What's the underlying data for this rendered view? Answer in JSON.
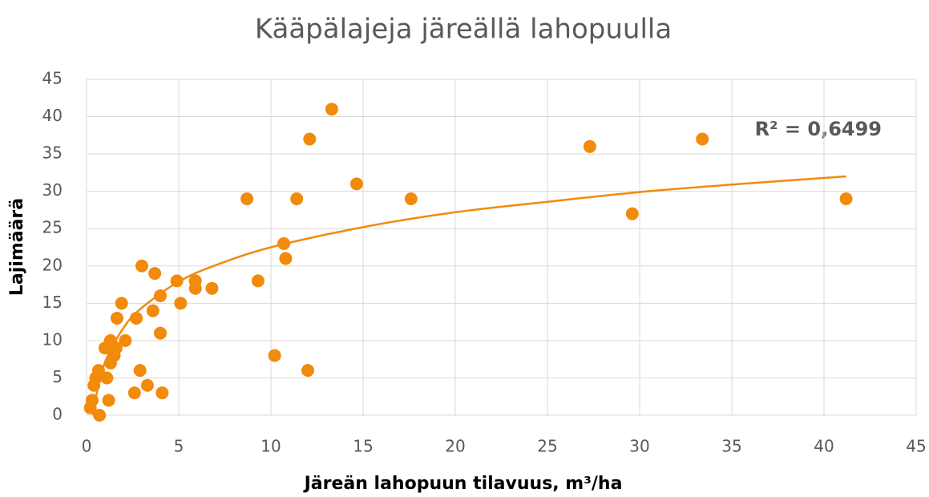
{
  "chart_data": {
    "type": "scatter",
    "title": "Kääpälajeja järeällä lahopuulla",
    "x_label": "Järeän lahopuun tilavuus, m³/ha",
    "y_label": "Lajimäärä",
    "annotation": "R² = 0,6499",
    "grid": true,
    "xlim": [
      0,
      45
    ],
    "ylim": [
      0,
      45
    ],
    "xticks": [
      0,
      5,
      10,
      15,
      20,
      25,
      30,
      35,
      40,
      45
    ],
    "yticks": [
      0,
      5,
      10,
      15,
      20,
      25,
      30,
      35,
      40,
      45
    ],
    "series": [
      {
        "color": "#f28a0c",
        "x": [
          0.2,
          0.3,
          0.4,
          0.5,
          0.65,
          0.7,
          1.0,
          1.1,
          1.2,
          1.3,
          1.3,
          1.5,
          1.6,
          1.65,
          1.9,
          2.1,
          2.6,
          2.7,
          2.9,
          3.0,
          3.3,
          3.6,
          3.7,
          4.0,
          4.0,
          4.1,
          4.9,
          5.1,
          5.9,
          5.9,
          6.8,
          8.7,
          9.3,
          10.2,
          10.7,
          10.8,
          11.4,
          12.0,
          12.1,
          13.3,
          14.65,
          17.6,
          27.3,
          29.6,
          33.4,
          41.2
        ],
        "values": [
          1,
          2,
          4,
          5,
          6,
          0,
          9,
          5,
          2,
          7,
          10,
          8,
          9,
          13,
          15,
          10,
          3,
          13,
          6,
          20,
          4,
          14,
          19,
          11,
          16,
          3,
          18,
          15,
          17,
          18,
          17,
          29,
          18,
          8,
          23,
          21,
          29,
          6,
          37,
          41,
          31,
          29,
          36,
          27,
          37,
          29
        ]
      },
      {
        "type": "trendline",
        "color": "#f28a0c",
        "x": [
          0.35,
          0.5,
          1,
          2,
          3,
          5,
          7,
          10,
          15,
          20,
          25,
          30,
          35,
          41.2
        ],
        "values": [
          0.0,
          2.4,
          7.1,
          11.7,
          14.4,
          17.9,
          20.1,
          22.5,
          25.2,
          27.2,
          28.6,
          29.9,
          30.9,
          32.0
        ]
      }
    ]
  }
}
